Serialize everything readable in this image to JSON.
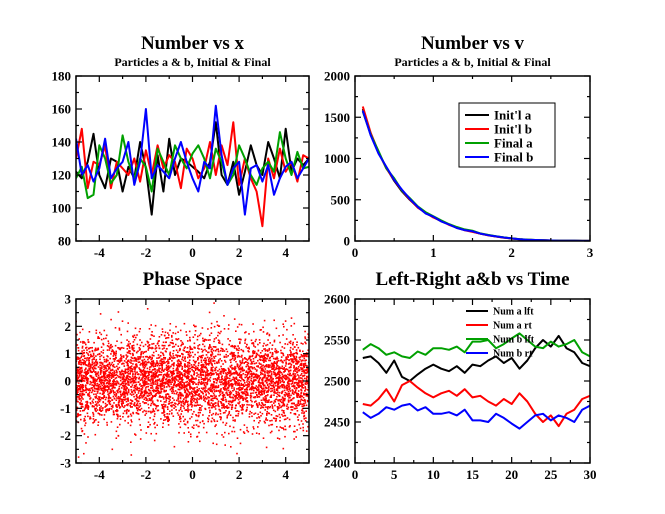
{
  "chart_data": [
    {
      "type": "line",
      "title": "Number vs x",
      "subtitle": "Particles a & b, Initial & Final",
      "xlim": [
        -5,
        5
      ],
      "ylim": [
        80,
        180
      ],
      "xticks": [
        -4,
        -2,
        0,
        2,
        4
      ],
      "yticks": [
        80,
        100,
        120,
        140,
        160,
        180
      ],
      "x": [
        -5.0,
        -4.75,
        -4.5,
        -4.25,
        -4.0,
        -3.75,
        -3.5,
        -3.25,
        -3.0,
        -2.75,
        -2.5,
        -2.25,
        -2.0,
        -1.75,
        -1.5,
        -1.25,
        -1.0,
        -0.75,
        -0.5,
        -0.25,
        0.0,
        0.25,
        0.5,
        0.75,
        1.0,
        1.25,
        1.5,
        1.75,
        2.0,
        2.25,
        2.5,
        2.75,
        3.0,
        3.25,
        3.5,
        3.75,
        4.0,
        4.25,
        4.5,
        4.75,
        5.0
      ],
      "series": [
        {
          "name": "Init'l a",
          "color": "#000000",
          "values": [
            122,
            118,
            128,
            145,
            120,
            112,
            130,
            128,
            110,
            125,
            118,
            140,
            124,
            96,
            132,
            110,
            142,
            120,
            130,
            128,
            125,
            122,
            118,
            128,
            152,
            120,
            114,
            128,
            108,
            122,
            138,
            126,
            120,
            140,
            130,
            118,
            148,
            122,
            130,
            126,
            130
          ]
        },
        {
          "name": "Init'l b",
          "color": "#ff0000",
          "values": [
            130,
            148,
            112,
            128,
            126,
            138,
            112,
            128,
            124,
            120,
            130,
            116,
            135,
            120,
            138,
            124,
            132,
            128,
            112,
            136,
            130,
            118,
            124,
            140,
            120,
            138,
            126,
            152,
            114,
            130,
            118,
            110,
            89,
            130,
            118,
            136,
            122,
            128,
            116,
            132,
            130
          ]
        },
        {
          "name": "Final a",
          "color": "#00a000",
          "values": [
            118,
            125,
            106,
            108,
            138,
            130,
            115,
            120,
            144,
            128,
            118,
            130,
            125,
            110,
            136,
            128,
            120,
            138,
            130,
            124,
            133,
            138,
            130,
            118,
            136,
            128,
            114,
            120,
            138,
            130,
            120,
            114,
            124,
            128,
            122,
            146,
            130,
            120,
            134,
            124,
            125
          ]
        },
        {
          "name": "Final b",
          "color": "#0000ff",
          "values": [
            142,
            120,
            126,
            116,
            124,
            142,
            118,
            124,
            128,
            140,
            114,
            128,
            160,
            118,
            126,
            122,
            118,
            130,
            140,
            128,
            118,
            110,
            128,
            124,
            162,
            132,
            114,
            124,
            128,
            96,
            124,
            126,
            116,
            126,
            108,
            118,
            125,
            128,
            118,
            124,
            130
          ]
        }
      ]
    },
    {
      "type": "line",
      "title": "Number vs v",
      "subtitle": "Particles a & b, Initial & Final",
      "xlim": [
        0,
        3
      ],
      "ylim": [
        0,
        2000
      ],
      "xticks": [
        0,
        1,
        2,
        3
      ],
      "yticks": [
        0,
        500,
        1000,
        1500,
        2000
      ],
      "legend_position": "top-right",
      "x": [
        0.1,
        0.2,
        0.3,
        0.4,
        0.5,
        0.6,
        0.7,
        0.8,
        0.9,
        1.0,
        1.1,
        1.2,
        1.3,
        1.4,
        1.5,
        1.6,
        1.7,
        1.8,
        1.9,
        2.0,
        2.1,
        2.2,
        2.3,
        2.4,
        2.5,
        2.6,
        2.7,
        2.8,
        2.9,
        3.0
      ],
      "series": [
        {
          "name": "Init'l a",
          "color": "#000000",
          "values": [
            1600,
            1300,
            1070,
            890,
            730,
            600,
            500,
            410,
            340,
            290,
            240,
            200,
            160,
            135,
            115,
            90,
            70,
            55,
            42,
            30,
            22,
            16,
            12,
            9,
            6,
            4,
            3,
            2,
            1,
            1
          ]
        },
        {
          "name": "Init'l b",
          "color": "#ff0000",
          "values": [
            1630,
            1310,
            1080,
            880,
            740,
            610,
            505,
            405,
            345,
            285,
            245,
            195,
            165,
            130,
            110,
            88,
            68,
            54,
            40,
            30,
            21,
            15,
            11,
            8,
            6,
            4,
            3,
            2,
            1,
            1
          ]
        },
        {
          "name": "Final a",
          "color": "#00a000",
          "values": [
            1570,
            1290,
            1090,
            880,
            760,
            610,
            520,
            420,
            350,
            300,
            250,
            205,
            170,
            140,
            125,
            92,
            74,
            58,
            44,
            32,
            23,
            17,
            12,
            9,
            6,
            4,
            3,
            2,
            1,
            1
          ]
        },
        {
          "name": "Final b",
          "color": "#0000ff",
          "values": [
            1580,
            1280,
            1060,
            900,
            740,
            620,
            510,
            415,
            335,
            295,
            238,
            200,
            158,
            132,
            118,
            90,
            70,
            56,
            42,
            31,
            22,
            16,
            12,
            9,
            6,
            4,
            3,
            2,
            1,
            1
          ]
        }
      ]
    },
    {
      "type": "scatter",
      "title": "Phase Space",
      "xlim": [
        -5,
        5
      ],
      "ylim": [
        -3,
        3
      ],
      "xticks": [
        -4,
        -2,
        0,
        2,
        4
      ],
      "yticks": [
        -3,
        -2,
        -1,
        0,
        1,
        2,
        3
      ],
      "series": [
        {
          "name": "",
          "color": "#ff0000",
          "distribution": "uniform in x, gaussian in y (sigma ~0.8)",
          "count": 5000
        }
      ]
    },
    {
      "type": "line",
      "title": "Left-Right  a&b vs Time",
      "xlim": [
        0,
        30
      ],
      "ylim": [
        2400,
        2600
      ],
      "xticks": [
        0,
        5,
        10,
        15,
        20,
        25,
        30
      ],
      "yticks": [
        2400,
        2450,
        2500,
        2550,
        2600
      ],
      "legend_position": "top-right",
      "x": [
        1,
        2,
        3,
        4,
        5,
        6,
        7,
        8,
        9,
        10,
        11,
        12,
        13,
        14,
        15,
        16,
        17,
        18,
        19,
        20,
        21,
        22,
        23,
        24,
        25,
        26,
        27,
        28,
        29,
        30
      ],
      "series": [
        {
          "name": "Num a lft",
          "color": "#000000",
          "values": [
            2528,
            2530,
            2522,
            2510,
            2525,
            2505,
            2500,
            2508,
            2515,
            2520,
            2515,
            2512,
            2518,
            2510,
            2520,
            2518,
            2525,
            2530,
            2522,
            2528,
            2515,
            2525,
            2540,
            2550,
            2542,
            2555,
            2540,
            2535,
            2522,
            2518
          ]
        },
        {
          "name": "Num a rt",
          "color": "#ff0000",
          "values": [
            2472,
            2470,
            2478,
            2490,
            2475,
            2495,
            2500,
            2492,
            2485,
            2480,
            2485,
            2488,
            2482,
            2490,
            2480,
            2482,
            2475,
            2470,
            2478,
            2472,
            2485,
            2475,
            2460,
            2450,
            2458,
            2445,
            2460,
            2465,
            2478,
            2482
          ]
        },
        {
          "name": "Num b lft",
          "color": "#00a000",
          "values": [
            2538,
            2545,
            2540,
            2532,
            2535,
            2530,
            2528,
            2536,
            2532,
            2540,
            2540,
            2538,
            2542,
            2535,
            2548,
            2548,
            2550,
            2540,
            2545,
            2552,
            2558,
            2550,
            2542,
            2540,
            2548,
            2542,
            2545,
            2550,
            2535,
            2530
          ]
        },
        {
          "name": "Num b rt",
          "color": "#0000ff",
          "values": [
            2462,
            2455,
            2460,
            2468,
            2465,
            2470,
            2472,
            2464,
            2468,
            2460,
            2460,
            2462,
            2458,
            2465,
            2452,
            2452,
            2450,
            2460,
            2455,
            2448,
            2442,
            2450,
            2458,
            2460,
            2452,
            2458,
            2455,
            2450,
            2465,
            2470
          ]
        }
      ]
    }
  ]
}
